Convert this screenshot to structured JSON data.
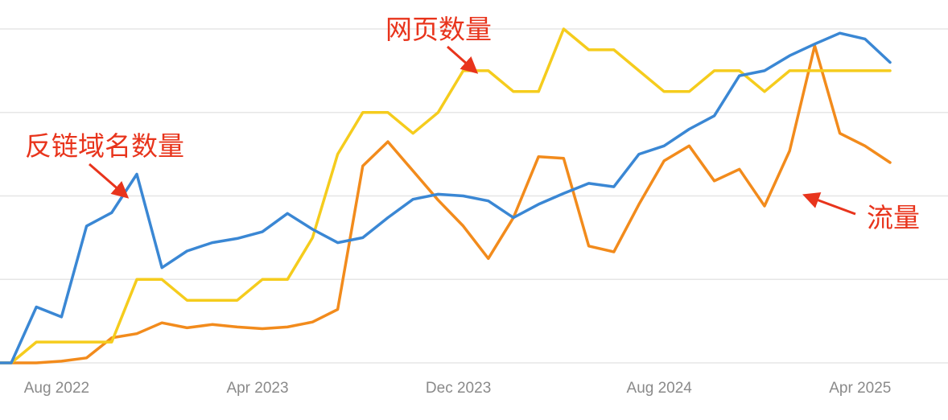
{
  "chart_data": {
    "type": "line",
    "title": "",
    "xlabel": "",
    "ylabel": "",
    "grid": true,
    "y_tick_labels_shown": false,
    "x": [
      "2022-06",
      "2022-07",
      "2022-08",
      "2022-09",
      "2022-10",
      "2022-11",
      "2022-12",
      "2023-01",
      "2023-02",
      "2023-03",
      "2023-04",
      "2023-05",
      "2023-06",
      "2023-07",
      "2023-08",
      "2023-09",
      "2023-10",
      "2023-11",
      "2023-12",
      "2024-01",
      "2024-02",
      "2024-03",
      "2024-04",
      "2024-05",
      "2024-06",
      "2024-07",
      "2024-08",
      "2024-09",
      "2024-10",
      "2024-11",
      "2024-12",
      "2025-01",
      "2025-02",
      "2025-03",
      "2025-04",
      "2025-05"
    ],
    "x_ticks": [
      "Aug 2022",
      "Apr 2023",
      "Dec 2023",
      "Aug 2024",
      "Apr 2025"
    ],
    "ylim": [
      0,
      4
    ],
    "series": [
      {
        "name": "反链域名数量",
        "color": "#3a87d4",
        "values": [
          0.0,
          0.67,
          0.55,
          1.64,
          1.8,
          2.26,
          1.14,
          1.34,
          1.44,
          1.49,
          1.57,
          1.79,
          1.6,
          1.44,
          1.5,
          1.74,
          1.96,
          2.02,
          2.0,
          1.94,
          1.74,
          1.9,
          2.03,
          2.15,
          2.11,
          2.5,
          2.6,
          2.8,
          2.96,
          3.44,
          3.5,
          3.68,
          3.82,
          3.95,
          3.88,
          3.6
        ]
      },
      {
        "name": "网页数量",
        "color": "#f5cc1d",
        "values": [
          0.0,
          0.25,
          0.25,
          0.25,
          0.25,
          1.0,
          1.0,
          0.75,
          0.75,
          0.75,
          1.0,
          1.0,
          1.5,
          2.5,
          3.0,
          3.0,
          2.75,
          3.0,
          3.5,
          3.5,
          3.25,
          3.25,
          4.0,
          3.75,
          3.75,
          3.5,
          3.25,
          3.25,
          3.5,
          3.5,
          3.25,
          3.5,
          3.5,
          3.5,
          3.5,
          3.5
        ]
      },
      {
        "name": "流量",
        "color": "#f28b1c",
        "values": [
          0.0,
          0.0,
          0.02,
          0.06,
          0.3,
          0.35,
          0.48,
          0.42,
          0.46,
          0.43,
          0.41,
          0.43,
          0.49,
          0.64,
          2.36,
          2.65,
          2.3,
          1.95,
          1.64,
          1.25,
          1.74,
          2.47,
          2.45,
          1.4,
          1.33,
          1.9,
          2.42,
          2.6,
          2.18,
          2.32,
          1.88,
          2.54,
          3.8,
          2.75,
          2.6,
          2.4
        ]
      }
    ],
    "annotations": [
      {
        "text": "网页数量",
        "series": "网页数量",
        "color": "#e8341c"
      },
      {
        "text": "反链域名数量",
        "series": "反链域名数量",
        "color": "#e8341c"
      },
      {
        "text": "流量",
        "series": "流量",
        "color": "#e8341c"
      }
    ]
  }
}
